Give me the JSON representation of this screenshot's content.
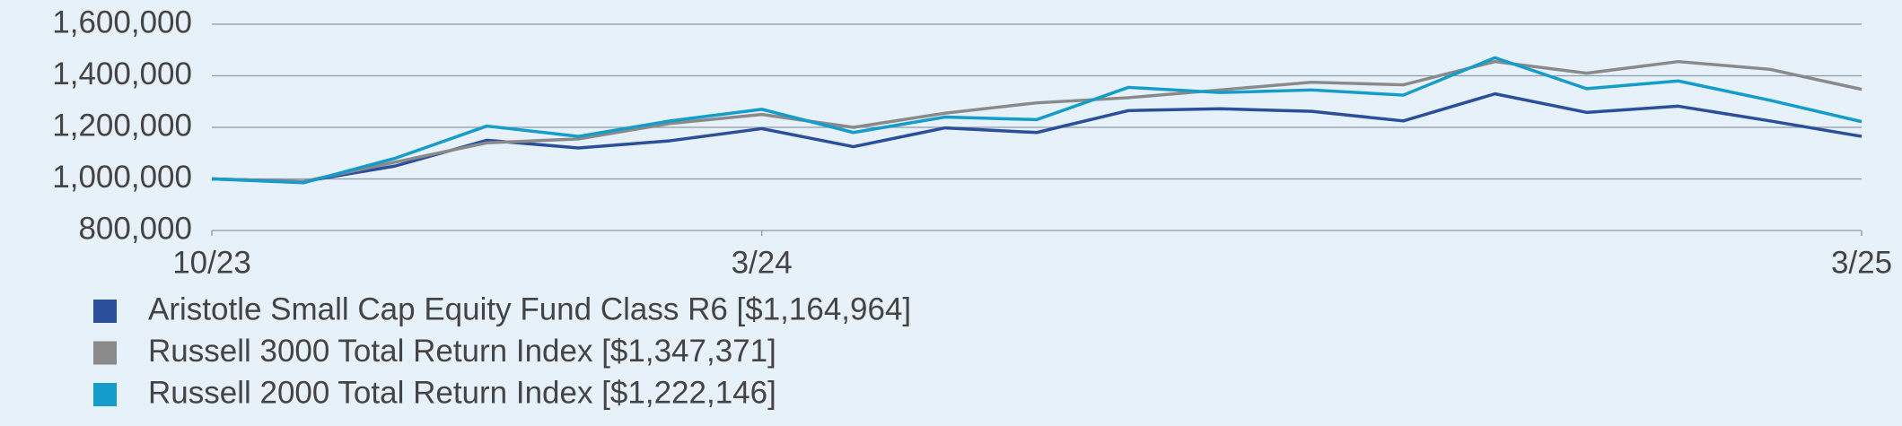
{
  "chart_data": {
    "type": "line",
    "categories": [
      "10/23",
      null,
      null,
      null,
      null,
      null,
      "3/24",
      null,
      null,
      null,
      null,
      null,
      null,
      null,
      null,
      null,
      null,
      null,
      "3/25"
    ],
    "series": [
      {
        "name": "Aristotle Small Cap Equity Fund Class R6 [$1,164,964]",
        "color": "#2b4f9b",
        "values": [
          1000000,
          990000,
          1050000,
          1150000,
          1120000,
          1148000,
          1195000,
          1125000,
          1198000,
          1180000,
          1265000,
          1272000,
          1262000,
          1225000,
          1330000,
          1258000,
          1282000,
          1225000,
          1164964
        ]
      },
      {
        "name": "Russell 3000 Total Return Index [$1,347,371]",
        "color": "#8a8a8a",
        "values": [
          1000000,
          990000,
          1065000,
          1140000,
          1155000,
          1215000,
          1250000,
          1200000,
          1255000,
          1295000,
          1315000,
          1345000,
          1375000,
          1365000,
          1455000,
          1410000,
          1455000,
          1425000,
          1347371
        ]
      },
      {
        "name": "Russell 2000 Total Return Index [$1,222,146]",
        "color": "#149ccb",
        "values": [
          1000000,
          985000,
          1080000,
          1205000,
          1165000,
          1225000,
          1270000,
          1180000,
          1240000,
          1230000,
          1355000,
          1335000,
          1345000,
          1325000,
          1470000,
          1350000,
          1380000,
          1305000,
          1222146
        ]
      }
    ],
    "ylim": [
      800000,
      1600000
    ],
    "yticks": [
      {
        "value": 800000,
        "label": "800,000"
      },
      {
        "value": 1000000,
        "label": "1,000,000"
      },
      {
        "value": 1200000,
        "label": "1,200,000"
      },
      {
        "value": 1400000,
        "label": "1,400,000"
      },
      {
        "value": 1600000,
        "label": "1,600,000"
      }
    ],
    "grid": true
  }
}
